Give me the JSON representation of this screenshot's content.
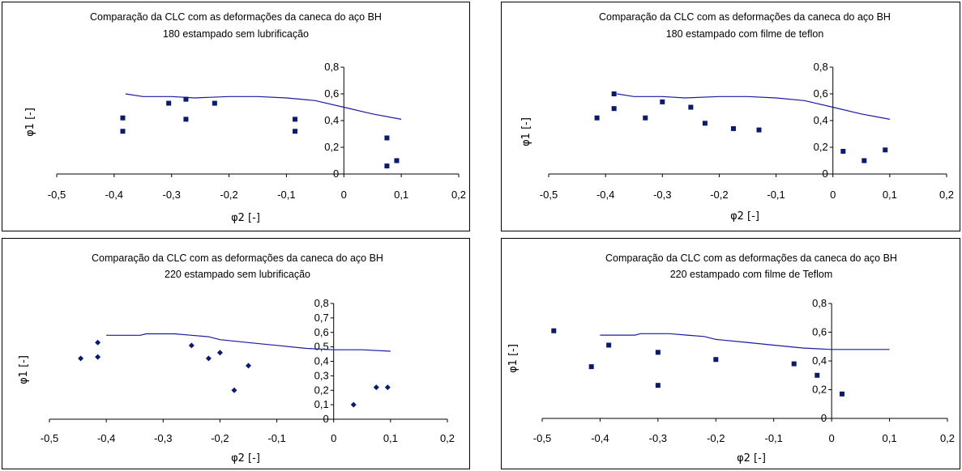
{
  "chart_data": [
    {
      "type": "scatter",
      "title_line1": "Comparação da CLC com as deformações da caneca do aço BH",
      "title_line2": "180 estampado sem lubrificação",
      "xlabel": "φ2 [-]",
      "ylabel": "φ1 [-]",
      "xlim": [
        -0.5,
        0.2
      ],
      "ylim": [
        0,
        0.8
      ],
      "x_ticks": [
        "-0,5",
        "-0,4",
        "-0,3",
        "-0,2",
        "-0,1",
        "0",
        "0,1",
        "0,2"
      ],
      "y_ticks": [
        "0",
        "0,2",
        "0,4",
        "0,6",
        "0,8"
      ],
      "marker": "square",
      "series": [
        {
          "kind": "line",
          "x": [
            -0.38,
            -0.35,
            -0.3,
            -0.26,
            -0.2,
            -0.15,
            -0.1,
            -0.05,
            0,
            0.05,
            0.1
          ],
          "y": [
            0.6,
            0.58,
            0.58,
            0.57,
            0.58,
            0.58,
            0.57,
            0.55,
            0.5,
            0.45,
            0.41
          ]
        },
        {
          "kind": "points",
          "x": [
            -0.385,
            -0.385,
            -0.305,
            -0.275,
            -0.275,
            -0.225,
            -0.085,
            -0.085,
            0.075,
            0.075,
            0.092
          ],
          "y": [
            0.42,
            0.32,
            0.53,
            0.56,
            0.41,
            0.53,
            0.41,
            0.32,
            0.27,
            0.06,
            0.1
          ]
        }
      ]
    },
    {
      "type": "scatter",
      "title_line1": "Comparação da CLC com as deformações da caneca do aço BH",
      "title_line2": "180 estampado com filme de teflon",
      "xlabel": "φ2 [-]",
      "ylabel": "φ1 [-]",
      "xlim": [
        -0.5,
        0.2
      ],
      "ylim": [
        0,
        0.8
      ],
      "x_ticks": [
        "-0,5",
        "-0,4",
        "-0,3",
        "-0,2",
        "-0,1",
        "0",
        "0,1",
        "0,2"
      ],
      "y_ticks": [
        "0",
        "0,2",
        "0,4",
        "0,6",
        "0,8"
      ],
      "marker": "square",
      "series": [
        {
          "kind": "line",
          "x": [
            -0.38,
            -0.35,
            -0.3,
            -0.26,
            -0.2,
            -0.15,
            -0.1,
            -0.05,
            0,
            0.05,
            0.1
          ],
          "y": [
            0.6,
            0.58,
            0.58,
            0.57,
            0.58,
            0.58,
            0.57,
            0.55,
            0.5,
            0.45,
            0.41
          ]
        },
        {
          "kind": "points",
          "x": [
            -0.415,
            -0.385,
            -0.385,
            -0.33,
            -0.3,
            -0.25,
            -0.225,
            -0.175,
            -0.13,
            0.018,
            0.055,
            0.092
          ],
          "y": [
            0.42,
            0.6,
            0.49,
            0.42,
            0.54,
            0.5,
            0.38,
            0.34,
            0.33,
            0.17,
            0.1,
            0.18
          ]
        }
      ]
    },
    {
      "type": "scatter",
      "title_line1": "Comparação da CLC com as deformações da caneca do aço BH",
      "title_line2": "220 estampado sem lubrificação",
      "xlabel": "φ2 [-]",
      "ylabel": "φ1 [-]",
      "xlim": [
        -0.5,
        0.2
      ],
      "ylim": [
        0,
        0.8
      ],
      "x_ticks": [
        "-0,5",
        "-0,4",
        "-0,3",
        "-0,2",
        "-0,1",
        "0",
        "0,1",
        "0,2"
      ],
      "y_ticks": [
        "0",
        "0,1",
        "0,2",
        "0,3",
        "0,4",
        "0,5",
        "0,6",
        "0,7",
        "0,8"
      ],
      "marker": "diamond",
      "series": [
        {
          "kind": "line",
          "x": [
            -0.4,
            -0.34,
            -0.33,
            -0.3,
            -0.28,
            -0.25,
            -0.22,
            -0.2,
            -0.15,
            -0.1,
            -0.05,
            0,
            0.05,
            0.1
          ],
          "y": [
            0.58,
            0.58,
            0.59,
            0.59,
            0.59,
            0.58,
            0.57,
            0.55,
            0.53,
            0.51,
            0.49,
            0.48,
            0.48,
            0.47
          ]
        },
        {
          "kind": "points",
          "x": [
            -0.445,
            -0.415,
            -0.415,
            -0.25,
            -0.22,
            -0.2,
            -0.175,
            -0.15,
            0.035,
            0.075,
            0.095
          ],
          "y": [
            0.42,
            0.53,
            0.43,
            0.51,
            0.42,
            0.46,
            0.2,
            0.37,
            0.1,
            0.22,
            0.22
          ]
        }
      ]
    },
    {
      "type": "scatter",
      "title_line1": "Comparação da CLC com as deformações da caneca do aço BH",
      "title_line2": "220 estampado com filme de Teflom",
      "xlabel": "φ2 [-]",
      "ylabel": "φ1 [-]",
      "xlim": [
        -0.5,
        0.2
      ],
      "ylim": [
        0,
        0.8
      ],
      "x_ticks": [
        "-0,5",
        "-0,4",
        "-0,3",
        "-0,2",
        "-0,1",
        "0",
        "0,1",
        "0,2"
      ],
      "y_ticks": [
        "0",
        "0,2",
        "0,4",
        "0,6",
        "0,8"
      ],
      "marker": "square",
      "series": [
        {
          "kind": "line",
          "x": [
            -0.4,
            -0.34,
            -0.33,
            -0.3,
            -0.28,
            -0.25,
            -0.22,
            -0.2,
            -0.15,
            -0.1,
            -0.05,
            0,
            0.05,
            0.1
          ],
          "y": [
            0.58,
            0.58,
            0.59,
            0.59,
            0.59,
            0.58,
            0.57,
            0.55,
            0.53,
            0.51,
            0.49,
            0.48,
            0.48,
            0.48
          ]
        },
        {
          "kind": "points",
          "x": [
            -0.48,
            -0.415,
            -0.385,
            -0.3,
            -0.3,
            -0.2,
            -0.065,
            -0.025,
            0.018
          ],
          "y": [
            0.61,
            0.36,
            0.51,
            0.46,
            0.23,
            0.41,
            0.38,
            0.3,
            0.17
          ]
        }
      ]
    }
  ],
  "colors": {
    "line": "#1a1aa0",
    "marker": "#0a1a6e",
    "axis": "#000000"
  }
}
